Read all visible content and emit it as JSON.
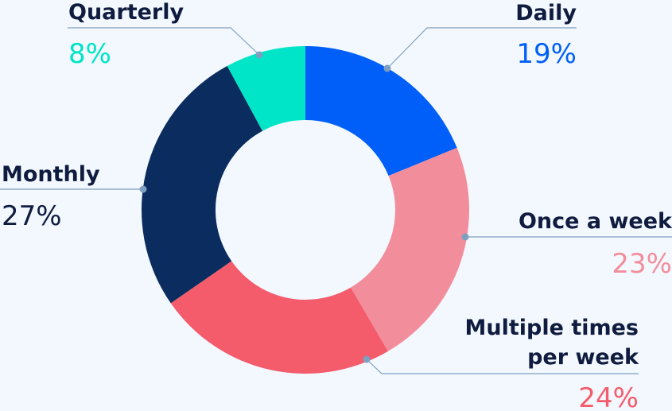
{
  "chart_data": {
    "type": "pie",
    "donut": true,
    "categories": [
      "Daily",
      "Once a week",
      "Multiple times per week",
      "Monthly",
      "Quarterly"
    ],
    "values": [
      19,
      23,
      24,
      27,
      8
    ],
    "value_labels": [
      "19%",
      "23%",
      "24%",
      "27%",
      "8%"
    ],
    "label_lines": [
      [
        "Daily"
      ],
      [
        "Once a week"
      ],
      [
        "Multiple times",
        "per week"
      ],
      [
        "Monthly"
      ],
      [
        "Quarterly"
      ]
    ],
    "colors": [
      "#005ff9",
      "#f28e9b",
      "#f45c6c",
      "#0b2c5e",
      "#00e5c8"
    ],
    "start_angle_deg": 0,
    "direction": "clockwise",
    "legend": "none",
    "leader_line_color": "#7f9fc0",
    "text_color": "#0f1c3f"
  }
}
